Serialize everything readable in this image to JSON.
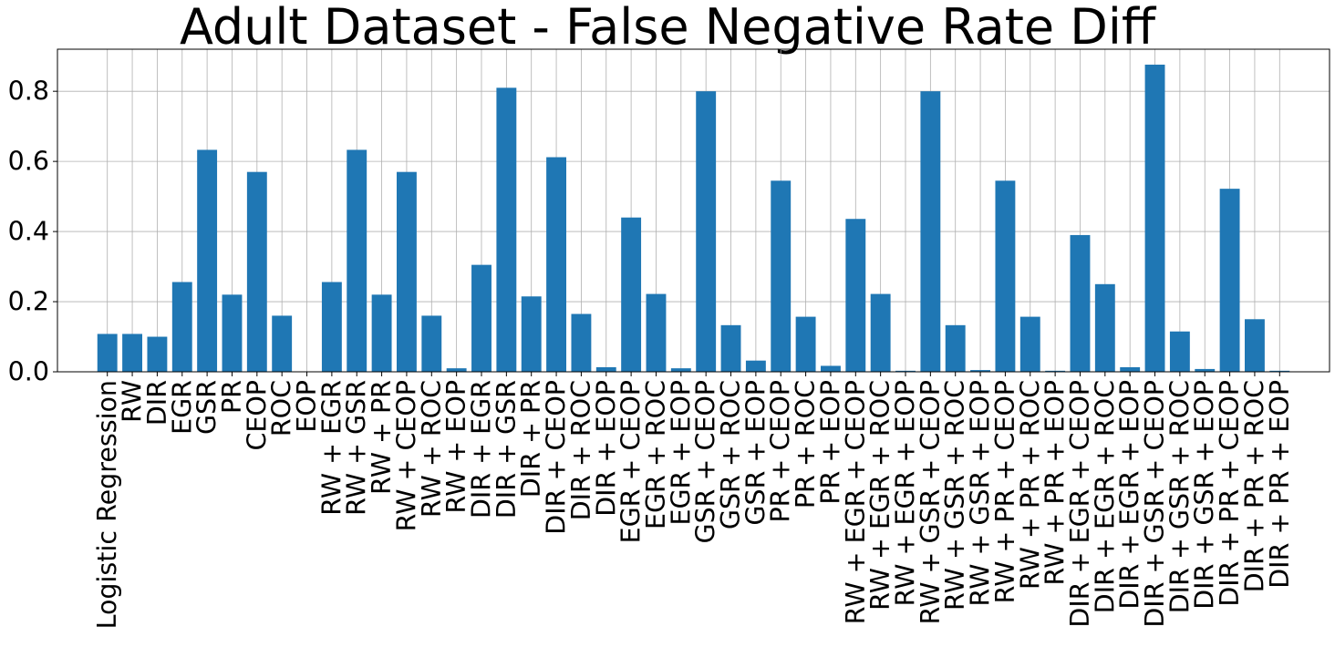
{
  "chart_data": {
    "type": "bar",
    "title": "Adult Dataset - False Negative Rate Diff",
    "xlabel": "",
    "ylabel": "",
    "ylim": [
      0,
      0.92
    ],
    "yticks": [
      "0.0",
      "0.2",
      "0.4",
      "0.6",
      "0.8"
    ],
    "grid": true,
    "bar_color": "#1f77b4",
    "categories": [
      "Logistic Regression",
      "RW",
      "DIR",
      "EGR",
      "GSR",
      "PR",
      "CEOP",
      "ROC",
      "EOP",
      "RW + EGR",
      "RW + GSR",
      "RW + PR",
      "RW + CEOP",
      "RW + ROC",
      "RW + EOP",
      "DIR + EGR",
      "DIR + GSR",
      "DIR + PR",
      "DIR + CEOP",
      "DIR + ROC",
      "DIR + EOP",
      "EGR + CEOP",
      "EGR + ROC",
      "EGR + EOP",
      "GSR + CEOP",
      "GSR + ROC",
      "GSR + EOP",
      "PR + CEOP",
      "PR + ROC",
      "PR + EOP",
      "RW + EGR + CEOP",
      "RW + EGR + ROC",
      "RW + EGR + EOP",
      "RW + GSR + CEOP",
      "RW + GSR + ROC",
      "RW + GSR + EOP",
      "RW + PR + CEOP",
      "RW + PR + ROC",
      "RW + PR + EOP",
      "DIR + EGR + CEOP",
      "DIR + EGR + ROC",
      "DIR + EGR + EOP",
      "DIR + GSR + CEOP",
      "DIR + GSR + ROC",
      "DIR + GSR + EOP",
      "DIR + PR + CEOP",
      "DIR + PR + ROC",
      "DIR + PR + EOP"
    ],
    "values": [
      0.108,
      0.108,
      0.1,
      0.256,
      0.633,
      0.22,
      0.57,
      0.16,
      0.0,
      0.256,
      0.633,
      0.22,
      0.57,
      0.16,
      0.01,
      0.305,
      0.81,
      0.215,
      0.612,
      0.165,
      0.013,
      0.44,
      0.222,
      0.01,
      0.8,
      0.133,
      0.032,
      0.545,
      0.157,
      0.017,
      0.436,
      0.222,
      0.003,
      0.8,
      0.133,
      0.005,
      0.545,
      0.157,
      0.003,
      0.39,
      0.25,
      0.013,
      0.876,
      0.115,
      0.008,
      0.522,
      0.15,
      0.003
    ]
  }
}
